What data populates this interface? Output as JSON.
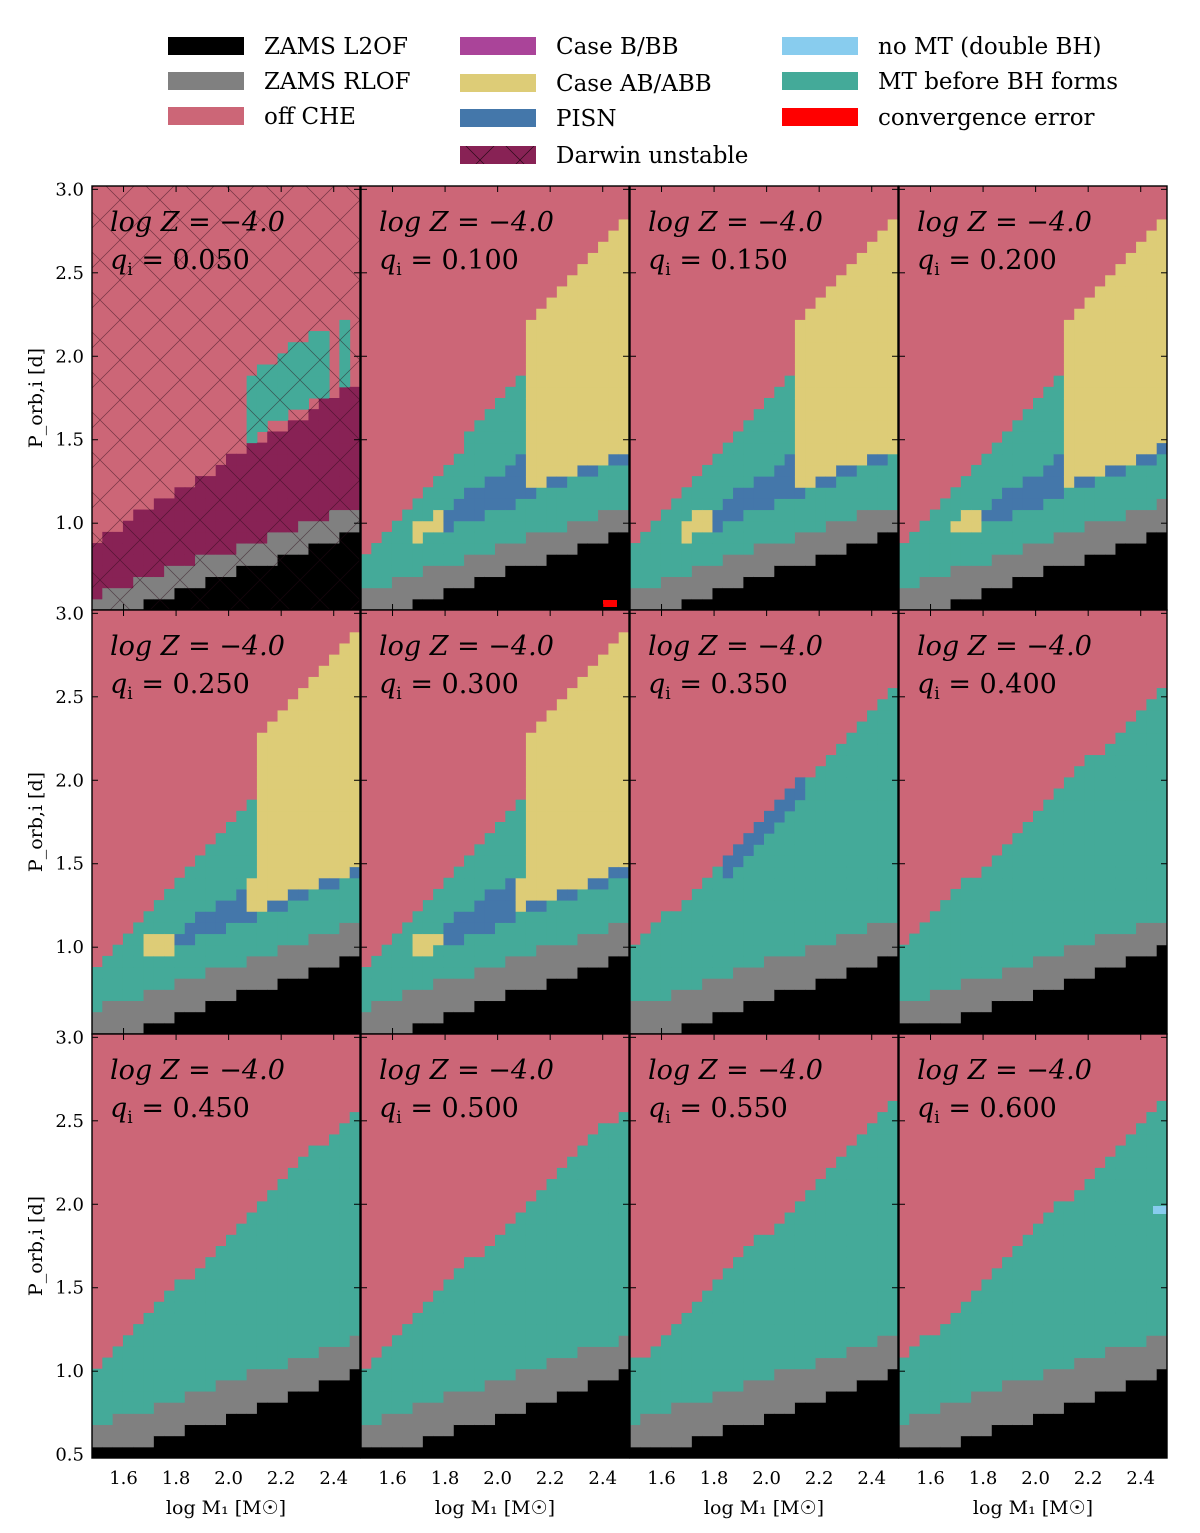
{
  "legend": [
    {
      "label": "ZAMS L2OF",
      "color": "#000000"
    },
    {
      "label": "ZAMS RLOF",
      "color": "#808080"
    },
    {
      "label": "off CHE",
      "color": "#cc6677"
    },
    {
      "label": "Case B/BB",
      "color": "#aa4499"
    },
    {
      "label": "Case AB/ABB",
      "color": "#ddcc77"
    },
    {
      "label": "PISN",
      "color": "#4477aa"
    },
    {
      "label": "Darwin unstable",
      "color": "#882255"
    },
    {
      "label": "no MT (double BH)",
      "color": "#88ccee"
    },
    {
      "label": "MT before BH forms",
      "color": "#44aa99"
    },
    {
      "label": "convergence error",
      "color": "#ff0000"
    }
  ],
  "chart_data": {
    "type": "heatmap",
    "xlabel": "log M₁ [M☉]",
    "ylabel": "P_orb,i [d]",
    "xlim": [
      1.48,
      2.5
    ],
    "ylim": [
      0.48,
      3.02
    ],
    "xticks": [
      "1.6",
      "1.8",
      "2.0",
      "2.2",
      "2.4"
    ],
    "yticks": [
      "0.5",
      "1.0",
      "1.5",
      "2.0",
      "2.5",
      "3.0"
    ],
    "panel_title": "log Z = −4.0",
    "q_label": "q",
    "q_sub": "i",
    "panels": [
      {
        "q": "0.050"
      },
      {
        "q": "0.100"
      },
      {
        "q": "0.150"
      },
      {
        "q": "0.200"
      },
      {
        "q": "0.250"
      },
      {
        "q": "0.300"
      },
      {
        "q": "0.350"
      },
      {
        "q": "0.400"
      },
      {
        "q": "0.450"
      },
      {
        "q": "0.500"
      },
      {
        "q": "0.550"
      },
      {
        "q": "0.600"
      }
    ]
  }
}
